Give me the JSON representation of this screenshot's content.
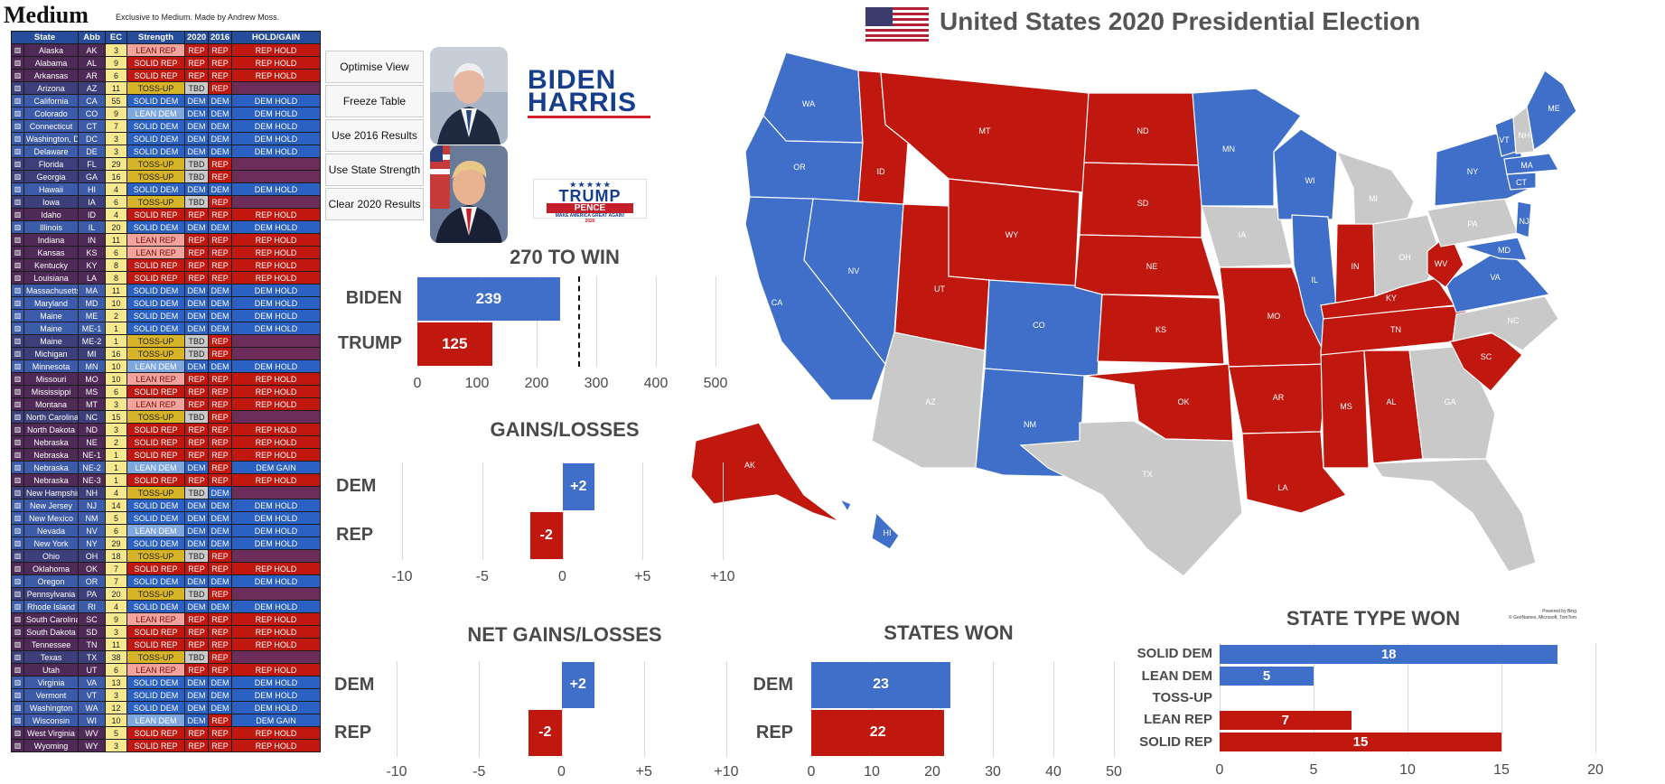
{
  "header": {
    "brand": "Medium",
    "tagline": "Exclusive to Medium. Made by Andrew Moss.",
    "map_title": "United States 2020 Presidential Election"
  },
  "table": {
    "columns": [
      "State",
      "Abb",
      "EC",
      "Strength",
      "2020",
      "2016",
      "HOLD/GAIN"
    ],
    "rows": [
      [
        "Alaska",
        "AK",
        "3",
        "LEAN REP",
        "REP",
        "REP",
        "REP HOLD"
      ],
      [
        "Alabama",
        "AL",
        "9",
        "SOLID REP",
        "REP",
        "REP",
        "REP HOLD"
      ],
      [
        "Arkansas",
        "AR",
        "6",
        "SOLID REP",
        "REP",
        "REP",
        "REP HOLD"
      ],
      [
        "Arizona",
        "AZ",
        "11",
        "TOSS-UP",
        "TBD",
        "REP",
        ""
      ],
      [
        "California",
        "CA",
        "55",
        "SOLID DEM",
        "DEM",
        "DEM",
        "DEM HOLD"
      ],
      [
        "Colorado",
        "CO",
        "9",
        "LEAN DEM",
        "DEM",
        "DEM",
        "DEM HOLD"
      ],
      [
        "Connecticut",
        "CT",
        "7",
        "SOLID DEM",
        "DEM",
        "DEM",
        "DEM HOLD"
      ],
      [
        "Washington, D.C.",
        "DC",
        "3",
        "SOLID DEM",
        "DEM",
        "DEM",
        "DEM HOLD"
      ],
      [
        "Delaware",
        "DE",
        "3",
        "SOLID DEM",
        "DEM",
        "DEM",
        "DEM HOLD"
      ],
      [
        "Florida",
        "FL",
        "29",
        "TOSS-UP",
        "TBD",
        "REP",
        ""
      ],
      [
        "Georgia",
        "GA",
        "16",
        "TOSS-UP",
        "TBD",
        "REP",
        ""
      ],
      [
        "Hawaii",
        "HI",
        "4",
        "SOLID DEM",
        "DEM",
        "DEM",
        "DEM HOLD"
      ],
      [
        "Iowa",
        "IA",
        "6",
        "TOSS-UP",
        "TBD",
        "REP",
        ""
      ],
      [
        "Idaho",
        "ID",
        "4",
        "SOLID REP",
        "REP",
        "REP",
        "REP HOLD"
      ],
      [
        "Illinois",
        "IL",
        "20",
        "SOLID DEM",
        "DEM",
        "DEM",
        "DEM HOLD"
      ],
      [
        "Indiana",
        "IN",
        "11",
        "LEAN REP",
        "REP",
        "REP",
        "REP HOLD"
      ],
      [
        "Kansas",
        "KS",
        "6",
        "LEAN REP",
        "REP",
        "REP",
        "REP HOLD"
      ],
      [
        "Kentucky",
        "KY",
        "8",
        "SOLID REP",
        "REP",
        "REP",
        "REP HOLD"
      ],
      [
        "Louisiana",
        "LA",
        "8",
        "SOLID REP",
        "REP",
        "REP",
        "REP HOLD"
      ],
      [
        "Massachusetts",
        "MA",
        "11",
        "SOLID DEM",
        "DEM",
        "DEM",
        "DEM HOLD"
      ],
      [
        "Maryland",
        "MD",
        "10",
        "SOLID DEM",
        "DEM",
        "DEM",
        "DEM HOLD"
      ],
      [
        "Maine",
        "ME",
        "2",
        "SOLID DEM",
        "DEM",
        "DEM",
        "DEM HOLD"
      ],
      [
        "Maine",
        "ME-1",
        "1",
        "SOLID DEM",
        "DEM",
        "DEM",
        "DEM HOLD"
      ],
      [
        "Maine",
        "ME-2",
        "1",
        "TOSS-UP",
        "TBD",
        "REP",
        ""
      ],
      [
        "Michigan",
        "MI",
        "16",
        "TOSS-UP",
        "TBD",
        "REP",
        ""
      ],
      [
        "Minnesota",
        "MN",
        "10",
        "LEAN DEM",
        "DEM",
        "DEM",
        "DEM HOLD"
      ],
      [
        "Missouri",
        "MO",
        "10",
        "LEAN REP",
        "REP",
        "REP",
        "REP HOLD"
      ],
      [
        "Mississippi",
        "MS",
        "6",
        "SOLID REP",
        "REP",
        "REP",
        "REP HOLD"
      ],
      [
        "Montana",
        "MT",
        "3",
        "LEAN REP",
        "REP",
        "REP",
        "REP HOLD"
      ],
      [
        "North Carolina",
        "NC",
        "15",
        "TOSS-UP",
        "TBD",
        "REP",
        ""
      ],
      [
        "North Dakota",
        "ND",
        "3",
        "SOLID REP",
        "REP",
        "REP",
        "REP HOLD"
      ],
      [
        "Nebraska",
        "NE",
        "2",
        "SOLID REP",
        "REP",
        "REP",
        "REP HOLD"
      ],
      [
        "Nebraska",
        "NE-1",
        "1",
        "SOLID REP",
        "REP",
        "REP",
        "REP HOLD"
      ],
      [
        "Nebraska",
        "NE-2",
        "1",
        "LEAN DEM",
        "DEM",
        "REP",
        "DEM GAIN"
      ],
      [
        "Nebraska",
        "NE-3",
        "1",
        "SOLID REP",
        "REP",
        "REP",
        "REP HOLD"
      ],
      [
        "New Hampshire",
        "NH",
        "4",
        "TOSS-UP",
        "TBD",
        "DEM",
        ""
      ],
      [
        "New Jersey",
        "NJ",
        "14",
        "SOLID DEM",
        "DEM",
        "DEM",
        "DEM HOLD"
      ],
      [
        "New Mexico",
        "NM",
        "5",
        "SOLID DEM",
        "DEM",
        "DEM",
        "DEM HOLD"
      ],
      [
        "Nevada",
        "NV",
        "6",
        "LEAN DEM",
        "DEM",
        "DEM",
        "DEM HOLD"
      ],
      [
        "New York",
        "NY",
        "29",
        "SOLID DEM",
        "DEM",
        "DEM",
        "DEM HOLD"
      ],
      [
        "Ohio",
        "OH",
        "18",
        "TOSS-UP",
        "TBD",
        "REP",
        ""
      ],
      [
        "Oklahoma",
        "OK",
        "7",
        "SOLID REP",
        "REP",
        "REP",
        "REP HOLD"
      ],
      [
        "Oregon",
        "OR",
        "7",
        "SOLID DEM",
        "DEM",
        "DEM",
        "DEM HOLD"
      ],
      [
        "Pennsylvania",
        "PA",
        "20",
        "TOSS-UP",
        "TBD",
        "REP",
        ""
      ],
      [
        "Rhode Island",
        "RI",
        "4",
        "SOLID DEM",
        "DEM",
        "DEM",
        "DEM HOLD"
      ],
      [
        "South Carolina",
        "SC",
        "9",
        "LEAN REP",
        "REP",
        "REP",
        "REP HOLD"
      ],
      [
        "South Dakota",
        "SD",
        "3",
        "SOLID REP",
        "REP",
        "REP",
        "REP HOLD"
      ],
      [
        "Tennessee",
        "TN",
        "11",
        "SOLID REP",
        "REP",
        "REP",
        "REP HOLD"
      ],
      [
        "Texas",
        "TX",
        "38",
        "TOSS-UP",
        "TBD",
        "REP",
        ""
      ],
      [
        "Utah",
        "UT",
        "6",
        "LEAN REP",
        "REP",
        "REP",
        "REP HOLD"
      ],
      [
        "Virginia",
        "VA",
        "13",
        "SOLID DEM",
        "DEM",
        "DEM",
        "DEM HOLD"
      ],
      [
        "Vermont",
        "VT",
        "3",
        "SOLID DEM",
        "DEM",
        "DEM",
        "DEM HOLD"
      ],
      [
        "Washington",
        "WA",
        "12",
        "SOLID DEM",
        "DEM",
        "DEM",
        "DEM HOLD"
      ],
      [
        "Wisconsin",
        "WI",
        "10",
        "LEAN DEM",
        "DEM",
        "REP",
        "DEM GAIN"
      ],
      [
        "West Virginia",
        "WV",
        "5",
        "SOLID REP",
        "REP",
        "REP",
        "REP HOLD"
      ],
      [
        "Wyoming",
        "WY",
        "3",
        "SOLID REP",
        "REP",
        "REP",
        "REP HOLD"
      ]
    ]
  },
  "controls": {
    "optimise": "Optimise View",
    "freeze": "Freeze Table",
    "use2016": "Use 2016 Results",
    "strength": "Use State Strength",
    "clear": "Clear 2020 Results"
  },
  "logos": {
    "biden_line1": "BIDEN",
    "biden_line2": "HARRIS",
    "trump_line1": "TRUMP",
    "trump_line2": "PENCE",
    "trump_line3": "MAKE AMERICA GREAT AGAIN!",
    "trump_year": "2020"
  },
  "colors": {
    "dem": "#3f6fc9",
    "rep": "#c0180f",
    "tossup": "#c9c9c9"
  },
  "chart_data": [
    {
      "type": "bar",
      "title": "270 TO WIN",
      "categories": [
        "BIDEN",
        "TRUMP"
      ],
      "values": [
        239,
        125
      ],
      "xlim": [
        0,
        500
      ],
      "ticks": [
        "0",
        "100",
        "200",
        "300",
        "400",
        "500"
      ],
      "threshold": 270
    },
    {
      "type": "bar",
      "title": "GAINS/LOSSES",
      "categories": [
        "DEM",
        "REP"
      ],
      "values": [
        2,
        -2
      ],
      "labels": [
        "+2",
        "-2"
      ],
      "xlim": [
        -10,
        10
      ],
      "ticks": [
        "-10",
        "-5",
        "0",
        "+5",
        "+10"
      ]
    },
    {
      "type": "bar",
      "title": "NET GAINS/LOSSES",
      "categories": [
        "DEM",
        "REP"
      ],
      "values": [
        2,
        -2
      ],
      "labels": [
        "+2",
        "-2"
      ],
      "xlim": [
        -10,
        10
      ],
      "ticks": [
        "-10",
        "-5",
        "0",
        "+5",
        "+10"
      ]
    },
    {
      "type": "bar",
      "title": "STATES WON",
      "categories": [
        "DEM",
        "REP"
      ],
      "values": [
        23,
        22
      ],
      "xlim": [
        0,
        50
      ],
      "ticks": [
        "0",
        "10",
        "20",
        "30",
        "40",
        "50"
      ]
    },
    {
      "type": "bar",
      "title": "STATE TYPE WON",
      "categories": [
        "SOLID DEM",
        "LEAN DEM",
        "TOSS-UP",
        "LEAN REP",
        "SOLID REP"
      ],
      "values": [
        18,
        5,
        0,
        7,
        15
      ],
      "xlim": [
        0,
        20
      ],
      "ticks": [
        "0",
        "5",
        "10",
        "15",
        "20"
      ]
    }
  ],
  "map": {
    "credit1": "Powered by Bing",
    "credit2": "© GeoNames, Microsoft, TomTom"
  }
}
